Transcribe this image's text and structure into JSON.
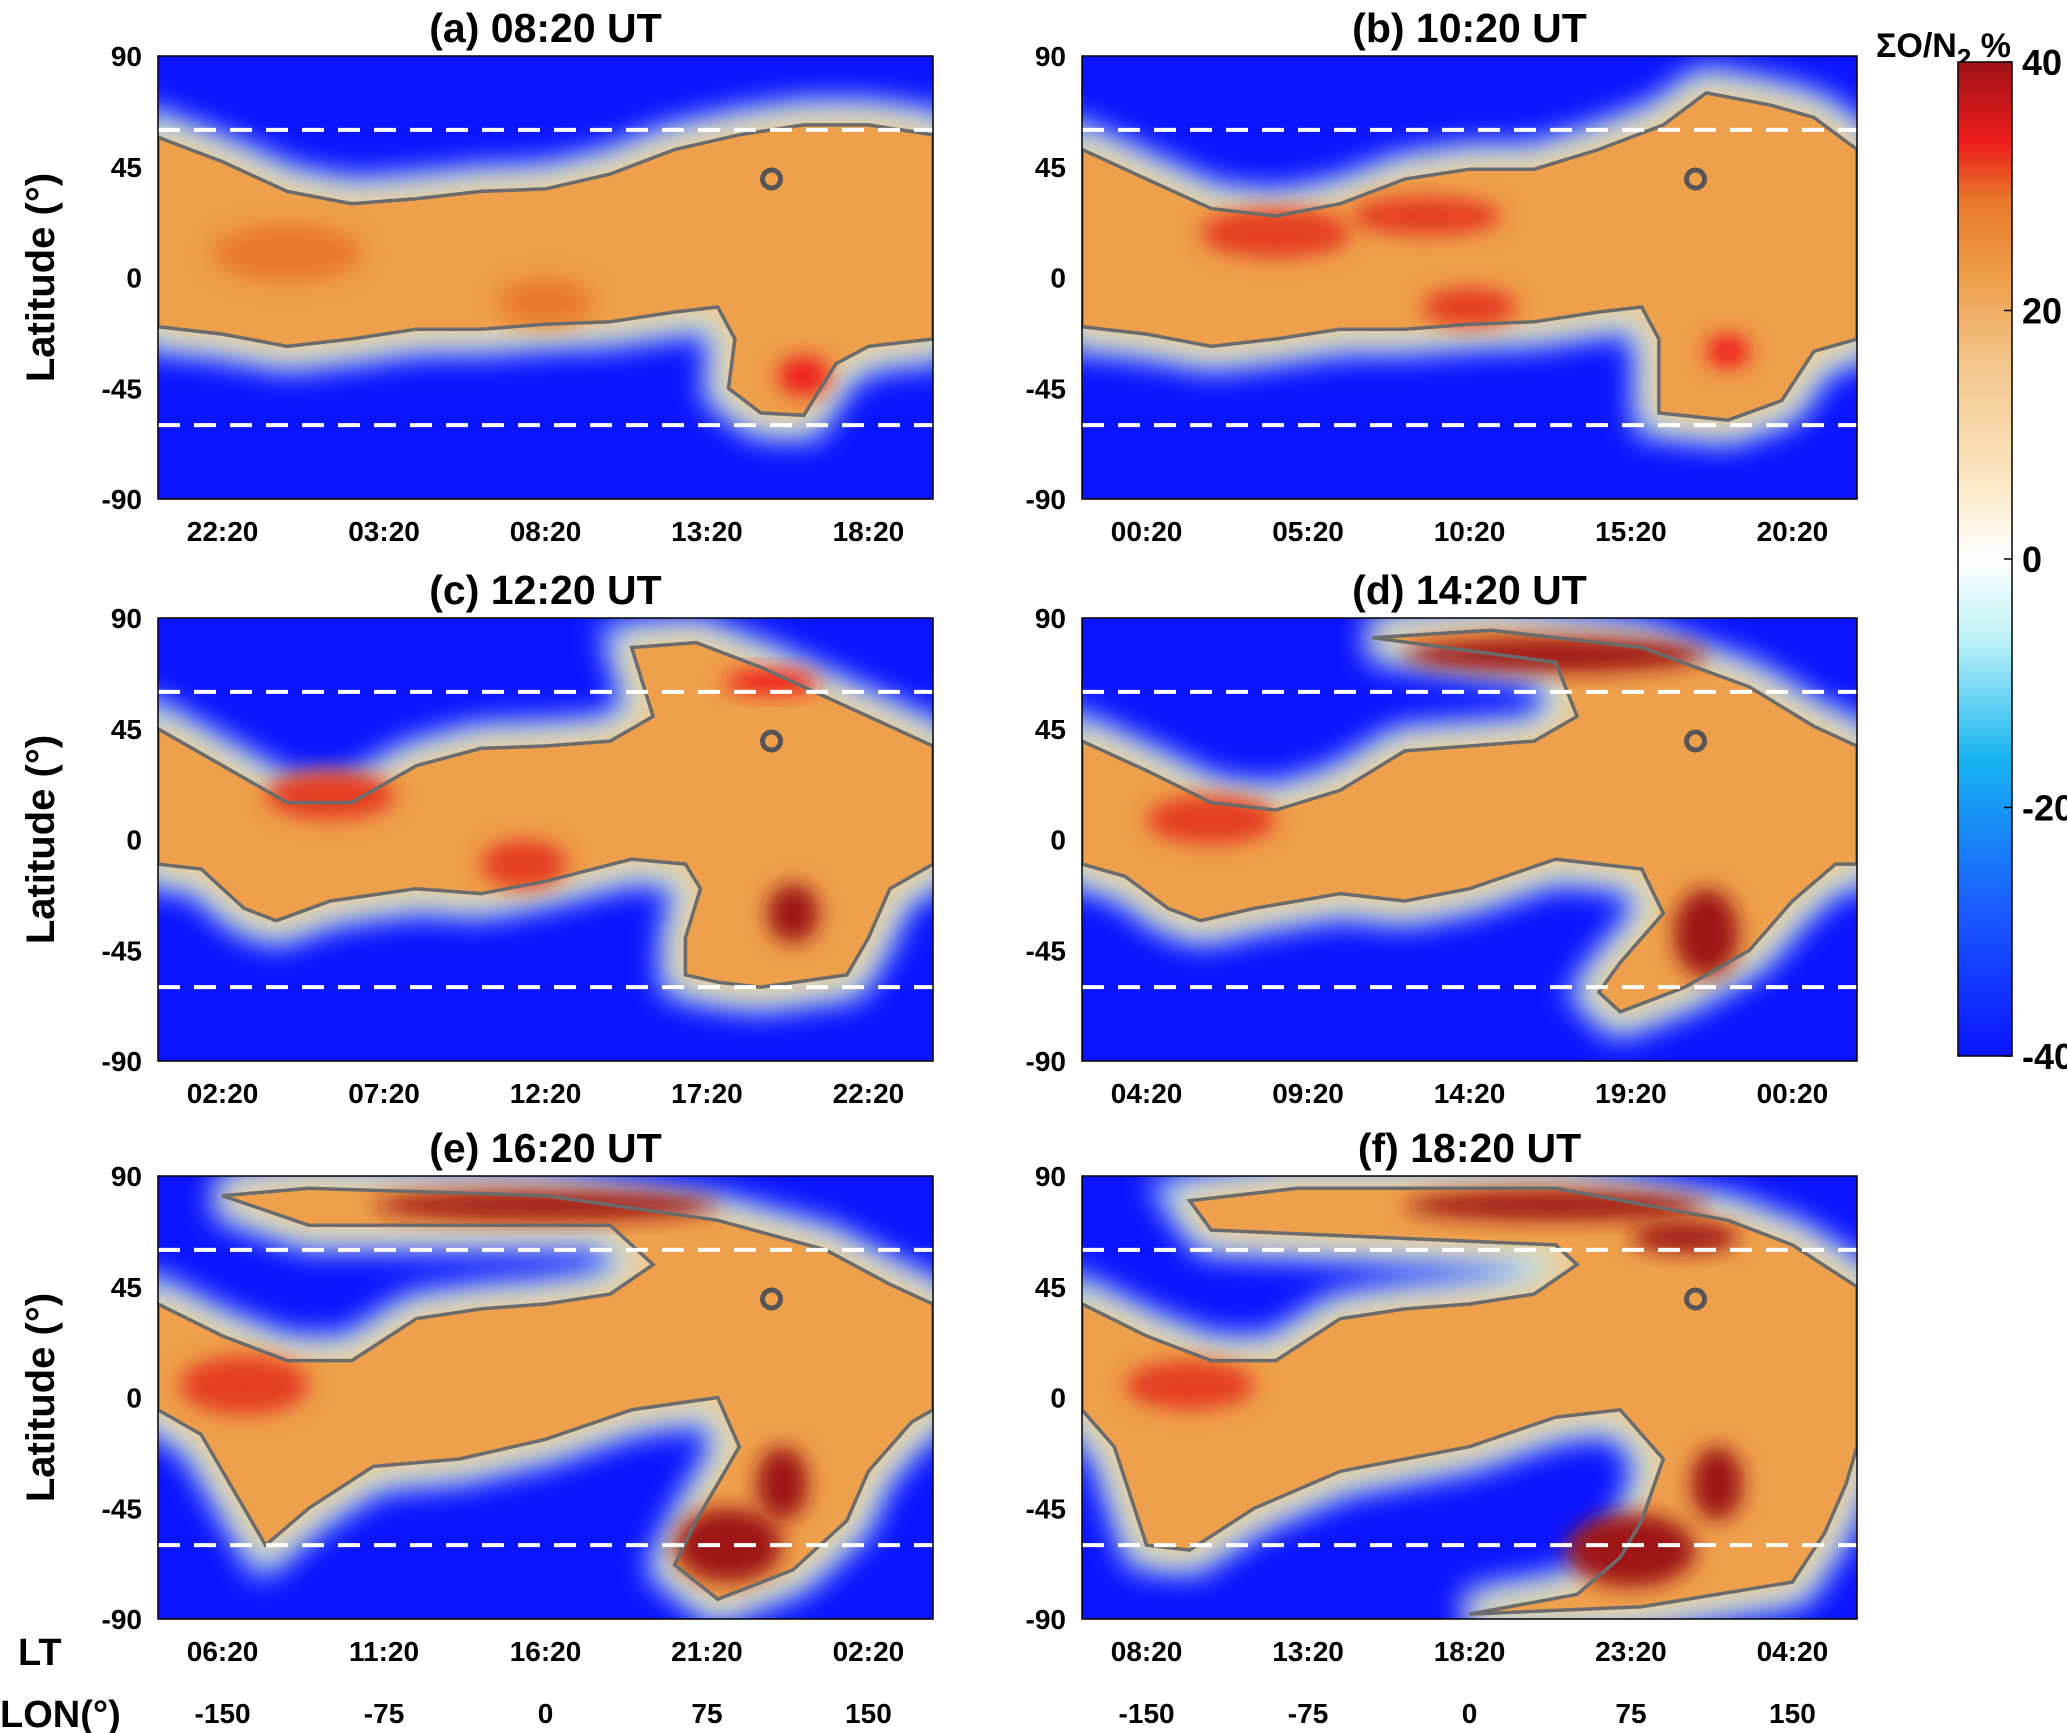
{
  "colors": {
    "colormap": [
      "#0a14ff",
      "#1a58ff",
      "#18b4f0",
      "#bff2f7",
      "#ffffff",
      "#fbe7c3",
      "#f2c48a",
      "#eea04c",
      "#e87a2c",
      "#e53c20",
      "#ee1c1c",
      "#9e1218"
    ],
    "contour": "#6b6b6b",
    "dashed_line": "#ffffff",
    "marker": "#555555"
  },
  "chart_data": {
    "type": "heatmap",
    "variable_label": "ΣO/N",
    "variable_subscript": "2",
    "variable_unit": " %",
    "colorbar": {
      "min": -40,
      "max": 40,
      "ticks": [
        40,
        20,
        0,
        -20,
        -40
      ]
    },
    "x_axis_row_labels": {
      "lt": "LT",
      "lon": "LON(°)"
    },
    "lon_ticks": [
      -150,
      -75,
      0,
      75,
      150
    ],
    "lat_ticks": [
      90,
      45,
      0,
      -45,
      -90
    ],
    "ylabel": "Latitude (°)",
    "xlim_lon": [
      -180,
      180
    ],
    "ylim_lat": [
      -90,
      90
    ],
    "dashed_latitudes": [
      60,
      -60
    ],
    "marker": {
      "lon": 105,
      "lat": 40
    },
    "panels": [
      {
        "title": "(a) 08:20 UT",
        "lt_ticks": [
          "22:20",
          "03:20",
          "08:20",
          "13:20",
          "18:20"
        ],
        "north_boundary": [
          [
            -180,
            57
          ],
          [
            -150,
            47
          ],
          [
            -120,
            35
          ],
          [
            -90,
            30
          ],
          [
            -60,
            32
          ],
          [
            -30,
            35
          ],
          [
            0,
            36
          ],
          [
            30,
            42
          ],
          [
            60,
            52
          ],
          [
            90,
            58
          ],
          [
            120,
            62
          ],
          [
            150,
            62
          ],
          [
            180,
            58
          ]
        ],
        "south_boundary": [
          [
            -180,
            -20
          ],
          [
            -150,
            -23
          ],
          [
            -120,
            -28
          ],
          [
            -90,
            -25
          ],
          [
            -60,
            -21
          ],
          [
            -30,
            -21
          ],
          [
            0,
            -19
          ],
          [
            30,
            -18
          ],
          [
            60,
            -14
          ],
          [
            80,
            -12
          ],
          [
            88,
            -25
          ],
          [
            85,
            -45
          ],
          [
            100,
            -55
          ],
          [
            120,
            -56
          ],
          [
            135,
            -35
          ],
          [
            150,
            -28
          ],
          [
            180,
            -25
          ]
        ],
        "hotspots": [
          {
            "lon": -120,
            "lat": 10,
            "value": 18,
            "rx": 35,
            "ry": 12
          },
          {
            "lon": 0,
            "lat": -10,
            "value": 20,
            "rx": 22,
            "ry": 10
          },
          {
            "lon": 120,
            "lat": -40,
            "value": 30,
            "rx": 12,
            "ry": 8
          }
        ]
      },
      {
        "title": "(b) 10:20 UT",
        "lt_ticks": [
          "00:20",
          "05:20",
          "10:20",
          "15:20",
          "20:20"
        ],
        "north_boundary": [
          [
            -180,
            52
          ],
          [
            -150,
            40
          ],
          [
            -120,
            28
          ],
          [
            -90,
            25
          ],
          [
            -60,
            30
          ],
          [
            -30,
            40
          ],
          [
            0,
            44
          ],
          [
            30,
            44
          ],
          [
            60,
            52
          ],
          [
            90,
            62
          ],
          [
            110,
            75
          ],
          [
            140,
            70
          ],
          [
            160,
            65
          ],
          [
            180,
            52
          ]
        ],
        "south_boundary": [
          [
            -180,
            -20
          ],
          [
            -150,
            -23
          ],
          [
            -120,
            -28
          ],
          [
            -90,
            -25
          ],
          [
            -60,
            -21
          ],
          [
            -30,
            -21
          ],
          [
            0,
            -19
          ],
          [
            30,
            -18
          ],
          [
            60,
            -14
          ],
          [
            80,
            -12
          ],
          [
            88,
            -25
          ],
          [
            88,
            -55
          ],
          [
            120,
            -58
          ],
          [
            145,
            -50
          ],
          [
            160,
            -30
          ],
          [
            180,
            -25
          ]
        ],
        "hotspots": [
          {
            "lon": -90,
            "lat": 18,
            "value": 28,
            "rx": 35,
            "ry": 10
          },
          {
            "lon": -20,
            "lat": 25,
            "value": 26,
            "rx": 35,
            "ry": 8
          },
          {
            "lon": 0,
            "lat": -12,
            "value": 24,
            "rx": 22,
            "ry": 8
          },
          {
            "lon": 120,
            "lat": -30,
            "value": 30,
            "rx": 10,
            "ry": 7
          }
        ]
      },
      {
        "title": "(c) 12:20 UT",
        "lt_ticks": [
          "02:20",
          "07:20",
          "12:20",
          "17:20",
          "22:20"
        ],
        "north_boundary": [
          [
            -180,
            45
          ],
          [
            -150,
            30
          ],
          [
            -120,
            15
          ],
          [
            -90,
            15
          ],
          [
            -60,
            30
          ],
          [
            -30,
            37
          ],
          [
            0,
            38
          ],
          [
            30,
            40
          ],
          [
            50,
            50
          ],
          [
            40,
            78
          ],
          [
            70,
            80
          ],
          [
            100,
            70
          ],
          [
            130,
            58
          ],
          [
            160,
            46
          ],
          [
            180,
            38
          ]
        ],
        "south_boundary": [
          [
            -180,
            -10
          ],
          [
            -160,
            -12
          ],
          [
            -140,
            -28
          ],
          [
            -125,
            -33
          ],
          [
            -100,
            -25
          ],
          [
            -60,
            -20
          ],
          [
            -30,
            -22
          ],
          [
            0,
            -17
          ],
          [
            40,
            -8
          ],
          [
            65,
            -10
          ],
          [
            72,
            -20
          ],
          [
            65,
            -40
          ],
          [
            65,
            -55
          ],
          [
            80,
            -58
          ],
          [
            100,
            -60
          ],
          [
            140,
            -55
          ],
          [
            150,
            -40
          ],
          [
            160,
            -20
          ],
          [
            180,
            -10
          ]
        ],
        "hotspots": [
          {
            "lon": -100,
            "lat": 18,
            "value": 24,
            "rx": 30,
            "ry": 10
          },
          {
            "lon": -10,
            "lat": -10,
            "value": 26,
            "rx": 20,
            "ry": 10
          },
          {
            "lon": 115,
            "lat": -30,
            "value": 42,
            "rx": 12,
            "ry": 12
          },
          {
            "lon": 105,
            "lat": 64,
            "value": 32,
            "rx": 22,
            "ry": 5
          }
        ]
      },
      {
        "title": "(d) 14:20 UT",
        "lt_ticks": [
          "04:20",
          "09:20",
          "14:20",
          "19:20",
          "00:20"
        ],
        "north_boundary": [
          [
            -180,
            40
          ],
          [
            -150,
            28
          ],
          [
            -120,
            15
          ],
          [
            -90,
            12
          ],
          [
            -60,
            20
          ],
          [
            -30,
            36
          ],
          [
            0,
            38
          ],
          [
            30,
            40
          ],
          [
            50,
            50
          ],
          [
            40,
            72
          ],
          [
            -45,
            82
          ],
          [
            10,
            85
          ],
          [
            80,
            78
          ],
          [
            130,
            62
          ],
          [
            160,
            46
          ],
          [
            180,
            38
          ]
        ],
        "south_boundary": [
          [
            -180,
            -10
          ],
          [
            -160,
            -15
          ],
          [
            -140,
            -28
          ],
          [
            -125,
            -33
          ],
          [
            -100,
            -28
          ],
          [
            -60,
            -22
          ],
          [
            -30,
            -25
          ],
          [
            0,
            -20
          ],
          [
            40,
            -8
          ],
          [
            80,
            -12
          ],
          [
            90,
            -30
          ],
          [
            70,
            -50
          ],
          [
            60,
            -62
          ],
          [
            70,
            -70
          ],
          [
            100,
            -60
          ],
          [
            130,
            -45
          ],
          [
            150,
            -25
          ],
          [
            170,
            -10
          ],
          [
            180,
            -10
          ]
        ],
        "hotspots": [
          {
            "lon": 40,
            "lat": 75,
            "value": 55,
            "rx": 70,
            "ry": 7
          },
          {
            "lon": 110,
            "lat": -38,
            "value": 55,
            "rx": 15,
            "ry": 18
          },
          {
            "lon": -120,
            "lat": 8,
            "value": 22,
            "rx": 30,
            "ry": 10
          }
        ]
      },
      {
        "title": "(e) 16:20 UT",
        "lt_ticks": [
          "06:20",
          "11:20",
          "16:20",
          "21:20",
          "02:20"
        ],
        "north_boundary": [
          [
            -180,
            38
          ],
          [
            -150,
            25
          ],
          [
            -120,
            15
          ],
          [
            -90,
            15
          ],
          [
            -60,
            32
          ],
          [
            -30,
            36
          ],
          [
            0,
            38
          ],
          [
            30,
            42
          ],
          [
            50,
            54
          ],
          [
            30,
            70
          ],
          [
            -110,
            70
          ],
          [
            -150,
            82
          ],
          [
            -110,
            85
          ],
          [
            0,
            82
          ],
          [
            80,
            72
          ],
          [
            130,
            60
          ],
          [
            160,
            46
          ],
          [
            180,
            38
          ]
        ],
        "south_boundary": [
          [
            -180,
            -5
          ],
          [
            -160,
            -15
          ],
          [
            -140,
            -45
          ],
          [
            -130,
            -60
          ],
          [
            -110,
            -45
          ],
          [
            -80,
            -28
          ],
          [
            -40,
            -25
          ],
          [
            0,
            -17
          ],
          [
            40,
            -5
          ],
          [
            80,
            0
          ],
          [
            90,
            -20
          ],
          [
            70,
            -50
          ],
          [
            60,
            -68
          ],
          [
            80,
            -82
          ],
          [
            115,
            -70
          ],
          [
            140,
            -50
          ],
          [
            150,
            -30
          ],
          [
            170,
            -10
          ],
          [
            180,
            -5
          ]
        ],
        "hotspots": [
          {
            "lon": 0,
            "lat": 78,
            "value": 55,
            "rx": 80,
            "ry": 6
          },
          {
            "lon": 85,
            "lat": -60,
            "value": 55,
            "rx": 25,
            "ry": 15
          },
          {
            "lon": 110,
            "lat": -35,
            "value": 48,
            "rx": 12,
            "ry": 15
          },
          {
            "lon": -140,
            "lat": 5,
            "value": 22,
            "rx": 30,
            "ry": 12
          }
        ]
      },
      {
        "title": "(f) 18:20 UT",
        "lt_ticks": [
          "08:20",
          "13:20",
          "18:20",
          "23:20",
          "04:20"
        ],
        "north_boundary": [
          [
            -180,
            38
          ],
          [
            -150,
            25
          ],
          [
            -120,
            15
          ],
          [
            -90,
            15
          ],
          [
            -60,
            32
          ],
          [
            -30,
            36
          ],
          [
            0,
            38
          ],
          [
            30,
            42
          ],
          [
            50,
            54
          ],
          [
            40,
            62
          ],
          [
            -120,
            68
          ],
          [
            -130,
            80
          ],
          [
            -80,
            85
          ],
          [
            40,
            85
          ],
          [
            120,
            72
          ],
          [
            150,
            62
          ],
          [
            180,
            45
          ]
        ],
        "south_boundary": [
          [
            -180,
            -5
          ],
          [
            -165,
            -20
          ],
          [
            -150,
            -60
          ],
          [
            -130,
            -62
          ],
          [
            -100,
            -45
          ],
          [
            -60,
            -30
          ],
          [
            0,
            -20
          ],
          [
            40,
            -8
          ],
          [
            70,
            -5
          ],
          [
            90,
            -25
          ],
          [
            80,
            -50
          ],
          [
            70,
            -65
          ],
          [
            50,
            -80
          ],
          [
            0,
            -88
          ],
          [
            80,
            -85
          ],
          [
            150,
            -75
          ],
          [
            165,
            -55
          ],
          [
            175,
            -35
          ],
          [
            180,
            -20
          ]
        ],
        "hotspots": [
          {
            "lon": 40,
            "lat": 78,
            "value": 45,
            "rx": 70,
            "ry": 6
          },
          {
            "lon": 100,
            "lat": 65,
            "value": 50,
            "rx": 25,
            "ry": 6
          },
          {
            "lon": 75,
            "lat": -62,
            "value": 55,
            "rx": 30,
            "ry": 15
          },
          {
            "lon": 115,
            "lat": -35,
            "value": 50,
            "rx": 12,
            "ry": 15
          },
          {
            "lon": -130,
            "lat": 5,
            "value": 22,
            "rx": 30,
            "ry": 10
          }
        ]
      }
    ]
  }
}
